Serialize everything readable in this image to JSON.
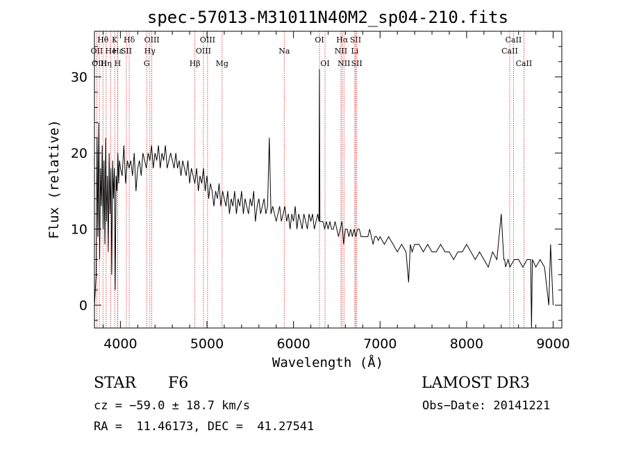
{
  "chart_data": {
    "type": "line",
    "title": "spec-57013-M31011N40M2_sp04-210.fits",
    "xlabel": "Wavelength (Å)",
    "ylabel": "Flux (relative)",
    "xlim": [
      3700,
      9100
    ],
    "ylim": [
      -3,
      36
    ],
    "xticks": [
      4000,
      5000,
      6000,
      7000,
      8000,
      9000
    ],
    "yticks": [
      0,
      10,
      20,
      30
    ],
    "xtick_labels": [
      "4000",
      "5000",
      "6000",
      "7000",
      "8000",
      "9000"
    ],
    "ytick_labels": [
      "0",
      "10",
      "20",
      "30"
    ],
    "series": [
      {
        "name": "spectrum",
        "x": [
          3700,
          3720,
          3730,
          3740,
          3750,
          3760,
          3770,
          3780,
          3790,
          3800,
          3810,
          3820,
          3830,
          3840,
          3850,
          3860,
          3870,
          3880,
          3890,
          3900,
          3910,
          3920,
          3930,
          3940,
          3950,
          3960,
          3970,
          3980,
          3990,
          4000,
          4020,
          4040,
          4060,
          4080,
          4100,
          4120,
          4140,
          4160,
          4180,
          4200,
          4220,
          4240,
          4260,
          4280,
          4300,
          4320,
          4340,
          4360,
          4380,
          4400,
          4420,
          4440,
          4460,
          4480,
          4500,
          4520,
          4540,
          4560,
          4580,
          4600,
          4620,
          4640,
          4660,
          4680,
          4700,
          4720,
          4740,
          4760,
          4780,
          4800,
          4820,
          4840,
          4860,
          4880,
          4900,
          4920,
          4940,
          4960,
          4980,
          5000,
          5020,
          5040,
          5060,
          5080,
          5100,
          5120,
          5140,
          5160,
          5180,
          5200,
          5220,
          5240,
          5260,
          5280,
          5300,
          5320,
          5340,
          5360,
          5380,
          5400,
          5420,
          5440,
          5460,
          5480,
          5500,
          5520,
          5540,
          5560,
          5580,
          5600,
          5620,
          5640,
          5660,
          5680,
          5700,
          5720,
          5740,
          5760,
          5780,
          5800,
          5820,
          5840,
          5860,
          5880,
          5900,
          5920,
          5940,
          5960,
          5980,
          6000,
          6020,
          6040,
          6060,
          6080,
          6100,
          6120,
          6140,
          6160,
          6180,
          6200,
          6220,
          6240,
          6260,
          6280,
          6295,
          6300,
          6305,
          6320,
          6340,
          6360,
          6380,
          6400,
          6420,
          6440,
          6460,
          6480,
          6500,
          6520,
          6540,
          6560,
          6580,
          6600,
          6620,
          6640,
          6660,
          6680,
          6700,
          6720,
          6740,
          6760,
          6780,
          6800,
          6820,
          6840,
          6860,
          6880,
          6900,
          6920,
          6940,
          6960,
          6980,
          7000,
          7050,
          7100,
          7150,
          7200,
          7250,
          7300,
          7330,
          7350,
          7370,
          7400,
          7450,
          7500,
          7550,
          7600,
          7650,
          7700,
          7750,
          7800,
          7850,
          7900,
          7950,
          8000,
          8050,
          8100,
          8150,
          8200,
          8250,
          8300,
          8350,
          8400,
          8430,
          8440,
          8450,
          8480,
          8500,
          8550,
          8600,
          8650,
          8700,
          8740,
          8750,
          8760,
          8800,
          8850,
          8900,
          8950,
          8970,
          9000
        ],
        "y": [
          0,
          4,
          22,
          9,
          24,
          6,
          18,
          13,
          21,
          10,
          19,
          8,
          22,
          11,
          17,
          7,
          20,
          12,
          18,
          4,
          19,
          14,
          18,
          2,
          17,
          15,
          20,
          16,
          19,
          18,
          17,
          21,
          16,
          19,
          18,
          19,
          17,
          20,
          15,
          18,
          19,
          17,
          20,
          19,
          18,
          20,
          19,
          21,
          18,
          20,
          19,
          21,
          18,
          20,
          19,
          21,
          18,
          19,
          20,
          19,
          18,
          20,
          18,
          19,
          17,
          19,
          18,
          17,
          19,
          16,
          18,
          17,
          16,
          18,
          15,
          17,
          16,
          18,
          15,
          17,
          14,
          16,
          15,
          13,
          15,
          14,
          16,
          13,
          15,
          14,
          13,
          15,
          12,
          14,
          13,
          15,
          12,
          14,
          13,
          15,
          12,
          14,
          13,
          12,
          14,
          13,
          15,
          11,
          13,
          14,
          12,
          13,
          14,
          12,
          13,
          22,
          12,
          13,
          12,
          11,
          12,
          13,
          11,
          12,
          13,
          11,
          12,
          10,
          12,
          11,
          13,
          10,
          12,
          11,
          10,
          12,
          11,
          10,
          12,
          11,
          12,
          10,
          11,
          12,
          11,
          31,
          11,
          11,
          11,
          10,
          11,
          10,
          11,
          10,
          10,
          11,
          10,
          9,
          10,
          11,
          8,
          10,
          10,
          9,
          10,
          9,
          10,
          9,
          10,
          10,
          9,
          9,
          9,
          9,
          9,
          10,
          9,
          8,
          9,
          9,
          8.5,
          9,
          8,
          9,
          8,
          7,
          8,
          7,
          3,
          8,
          7,
          8,
          8,
          7,
          8,
          7,
          7,
          8,
          7,
          7,
          6,
          7,
          7,
          8,
          7,
          6,
          7,
          6,
          5,
          7,
          6,
          12,
          6,
          6,
          5,
          6,
          5,
          6,
          6,
          5,
          6,
          6,
          -3,
          6,
          5,
          6,
          5,
          0,
          8,
          0
        ]
      }
    ],
    "lines": [
      {
        "label": "Hθ",
        "x": 3798,
        "row": 1
      },
      {
        "label": "OII",
        "x": 3727,
        "row": 2
      },
      {
        "label": "OIII",
        "x": 3757,
        "row": 3
      },
      {
        "label": "He",
        "x": 3889,
        "row": 2
      },
      {
        "label": "Hη",
        "x": 3835,
        "row": 3
      },
      {
        "label": "K",
        "x": 3934,
        "row": 1
      },
      {
        "label": "H",
        "x": 3968,
        "row": 3
      },
      {
        "label": "Hε",
        "x": 3970,
        "row": 2
      },
      {
        "label": "SII",
        "x": 4069,
        "row": 2
      },
      {
        "label": "Hδ",
        "x": 4102,
        "row": 1
      },
      {
        "label": "OIII",
        "x": 4363,
        "row": 1
      },
      {
        "label": "Hγ",
        "x": 4340,
        "row": 2
      },
      {
        "label": "G",
        "x": 4304,
        "row": 3
      },
      {
        "label": "Hβ",
        "x": 4861,
        "row": 3
      },
      {
        "label": "OIII",
        "x": 5007,
        "row": 1
      },
      {
        "label": "OIII",
        "x": 4959,
        "row": 2
      },
      {
        "label": "Mg",
        "x": 5175,
        "row": 3
      },
      {
        "label": "Na",
        "x": 5893,
        "row": 2
      },
      {
        "label": "OI",
        "x": 6300,
        "row": 1
      },
      {
        "label": "OI",
        "x": 6364,
        "row": 3
      },
      {
        "label": "Hα",
        "x": 6563,
        "row": 1
      },
      {
        "label": "NII",
        "x": 6548,
        "row": 2
      },
      {
        "label": "NII",
        "x": 6583,
        "row": 3
      },
      {
        "label": "SII",
        "x": 6717,
        "row": 1
      },
      {
        "label": "Li",
        "x": 6708,
        "row": 2
      },
      {
        "label": "SII",
        "x": 6731,
        "row": 3
      },
      {
        "label": "CaII",
        "x": 8542,
        "row": 1
      },
      {
        "label": "CaII",
        "x": 8498,
        "row": 2
      },
      {
        "label": "CaII",
        "x": 8662,
        "row": 3
      }
    ],
    "line_color": "#cc2222",
    "series_color": "#000000"
  },
  "info": {
    "class_label": "STAR",
    "subclass": "F6",
    "survey": "LAMOST DR3",
    "cz": "cz = −59.0 ± 18.7 km/s",
    "obs_date": "Obs−Date: 20141221",
    "coords": "RA =  11.46173, DEC =  41.27541"
  }
}
